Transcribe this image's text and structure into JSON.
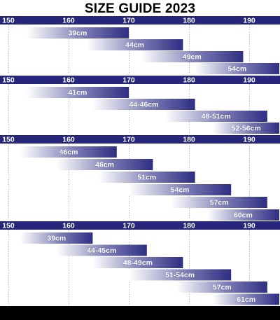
{
  "title": "SIZE GUIDE 2023",
  "colors": {
    "axis_band": "#26267a",
    "bar_dark": "#2e2e84",
    "bar_light": "#ffffff",
    "label": "#ffffff",
    "tick": "#2a2a7a"
  },
  "chart_data": [
    {
      "type": "bar",
      "orientation": "range",
      "x_ticks": [
        "150",
        "160",
        "170",
        "180",
        "190"
      ],
      "xlim": [
        150,
        195
      ],
      "series": [
        {
          "label": "39cm",
          "x_start": 153,
          "x_end": 170
        },
        {
          "label": "44cm",
          "x_start": 163,
          "x_end": 179
        },
        {
          "label": "49cm",
          "x_start": 172,
          "x_end": 189
        },
        {
          "label": "54cm",
          "x_start": 181,
          "x_end": 195
        }
      ]
    },
    {
      "type": "bar",
      "orientation": "range",
      "x_ticks": [
        "150",
        "160",
        "170",
        "180",
        "190"
      ],
      "xlim": [
        150,
        195
      ],
      "series": [
        {
          "label": "41cm",
          "x_start": 153,
          "x_end": 170
        },
        {
          "label": "44-46cm",
          "x_start": 164,
          "x_end": 181
        },
        {
          "label": "48-51cm",
          "x_start": 176,
          "x_end": 193
        },
        {
          "label": "52-56cm",
          "x_start": 184,
          "x_end": 195
        }
      ]
    },
    {
      "type": "bar",
      "orientation": "range",
      "x_ticks": [
        "150",
        "160",
        "170",
        "180",
        "190"
      ],
      "xlim": [
        150,
        195
      ],
      "series": [
        {
          "label": "46cm",
          "x_start": 152,
          "x_end": 168
        },
        {
          "label": "48cm",
          "x_start": 158,
          "x_end": 174
        },
        {
          "label": "51cm",
          "x_start": 165,
          "x_end": 181
        },
        {
          "label": "54cm",
          "x_start": 170,
          "x_end": 187
        },
        {
          "label": "57cm",
          "x_start": 177,
          "x_end": 193
        },
        {
          "label": "60cm",
          "x_start": 183,
          "x_end": 195
        }
      ]
    },
    {
      "type": "bar",
      "orientation": "range",
      "x_ticks": [
        "150",
        "160",
        "170",
        "180",
        "190"
      ],
      "xlim": [
        150,
        195
      ],
      "series": [
        {
          "label": "39cm",
          "x_start": 152,
          "x_end": 164
        },
        {
          "label": "44-45cm",
          "x_start": 158,
          "x_end": 173
        },
        {
          "label": "48-49cm",
          "x_start": 164,
          "x_end": 179
        },
        {
          "label": "51-54cm",
          "x_start": 170,
          "x_end": 187
        },
        {
          "label": "57cm",
          "x_start": 178,
          "x_end": 193
        },
        {
          "label": "61cm",
          "x_start": 184,
          "x_end": 195
        }
      ]
    }
  ]
}
